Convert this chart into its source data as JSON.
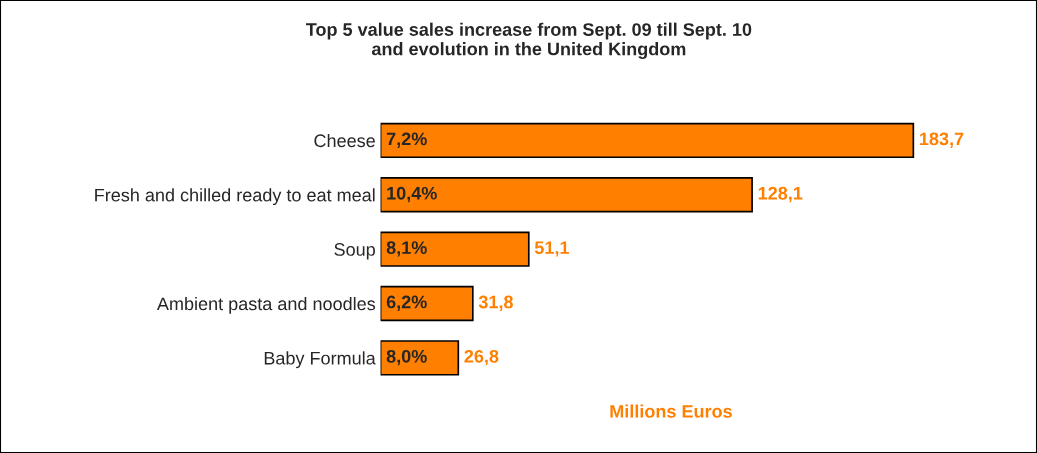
{
  "chart_data": {
    "type": "bar",
    "orientation": "horizontal",
    "title": "Top 5 value sales increase from Sept. 09 till Sept. 10\nand evolution in the United Kingdom",
    "xlabel": "Millions Euros",
    "categories": [
      "Cheese",
      "Fresh and chilled ready to eat meal",
      "Soup",
      "Ambient pasta and noodles",
      "Baby Formula"
    ],
    "values": [
      183.7,
      128.1,
      51.1,
      31.8,
      26.8
    ],
    "value_labels": [
      "183,7",
      "128,1",
      "51,1",
      "31,8",
      "26,8"
    ],
    "color": "#ff7f00",
    "annotations": [
      "7,2%",
      "10,4%",
      "8,1%",
      "6,2%",
      "8,0%"
    ],
    "tick_labels": "y",
    "grid": false,
    "legend": false
  }
}
